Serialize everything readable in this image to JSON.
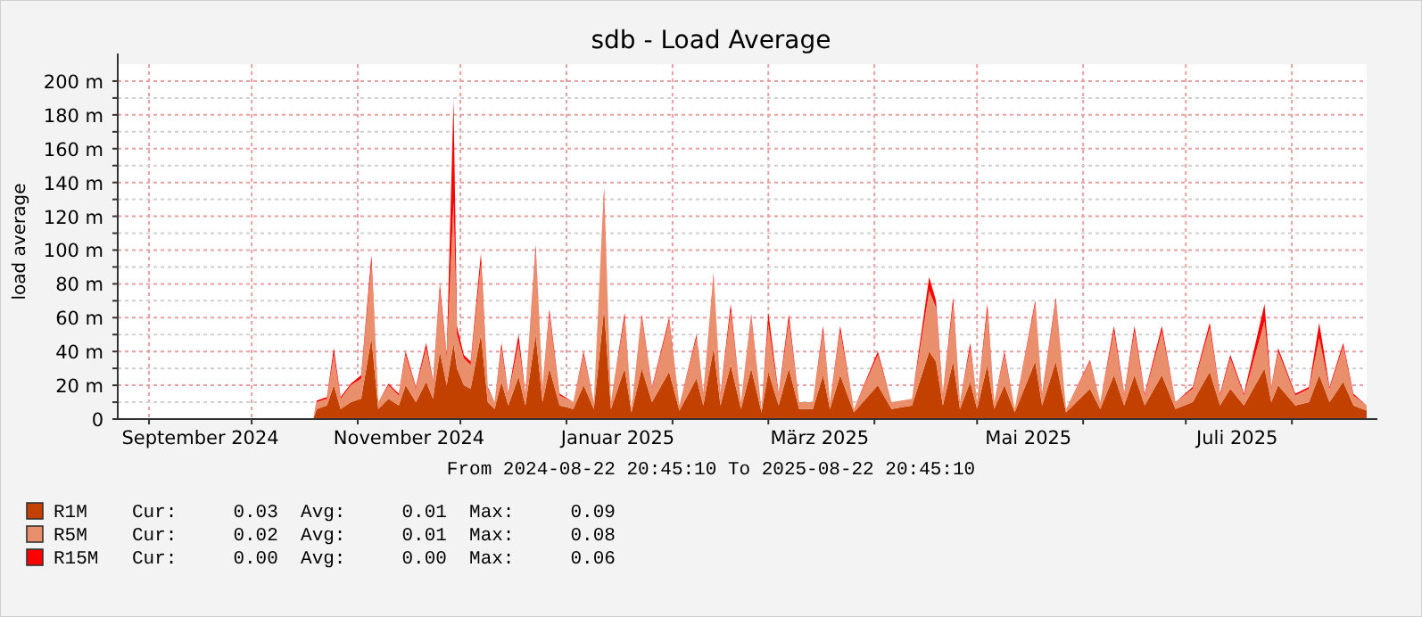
{
  "chart_data": {
    "type": "area",
    "title": "sdb - Load Average",
    "ylabel": "load average",
    "stacked": true,
    "grid": true,
    "legend": "bottom left",
    "xlim": [
      "2024-08-22T20:45",
      "2025-08-22T20:45"
    ],
    "xticks": [
      {
        "value": "2024-09-01",
        "label": null
      },
      {
        "value": "2024-09-16",
        "label": "September 2024"
      },
      {
        "value": "2024-10-01",
        "label": null
      },
      {
        "value": "2024-11-01",
        "label": null
      },
      {
        "value": "2024-11-16",
        "label": "November 2024"
      },
      {
        "value": "2024-12-01",
        "label": null
      },
      {
        "value": "2025-01-01",
        "label": null
      },
      {
        "value": "2025-01-16",
        "label": "Januar 2025"
      },
      {
        "value": "2025-02-01",
        "label": null
      },
      {
        "value": "2025-03-01",
        "label": null
      },
      {
        "value": "2025-03-16",
        "label": "März 2025"
      },
      {
        "value": "2025-04-01",
        "label": null
      },
      {
        "value": "2025-05-01",
        "label": null
      },
      {
        "value": "2025-05-16",
        "label": "Mai 2025"
      },
      {
        "value": "2025-06-01",
        "label": null
      },
      {
        "value": "2025-07-01",
        "label": null
      },
      {
        "value": "2025-07-16",
        "label": "Juli 2025"
      },
      {
        "value": "2025-08-01",
        "label": null
      }
    ],
    "ylim": [
      0,
      210
    ],
    "yticks": [
      0,
      {
        "value": 10,
        "label": null
      },
      {
        "value": 20,
        "label": "20 m"
      },
      {
        "value": 30,
        "label": null
      },
      {
        "value": 40,
        "label": "40 m"
      },
      {
        "value": 50,
        "label": null
      },
      {
        "value": 60,
        "label": "60 m"
      },
      {
        "value": 70,
        "label": null
      },
      {
        "value": 80,
        "label": "80 m"
      },
      {
        "value": 90,
        "label": null
      },
      {
        "value": 100,
        "label": "100 m"
      },
      {
        "value": 110,
        "label": null
      },
      {
        "value": 120,
        "label": "120 m"
      },
      {
        "value": 130,
        "label": null
      },
      {
        "value": 140,
        "label": "140 m"
      },
      {
        "value": 150,
        "label": null
      },
      {
        "value": 160,
        "label": "160 m"
      },
      {
        "value": 170,
        "label": null
      },
      {
        "value": 180,
        "label": "180 m"
      },
      {
        "value": 190,
        "label": null
      },
      {
        "value": 200,
        "label": "200 m"
      }
    ],
    "x": [
      "2024-10-19",
      "2024-10-20",
      "2024-10-23",
      "2024-10-25",
      "2024-10-27",
      "2024-10-30",
      "2024-11-02",
      "2024-11-05",
      "2024-11-07",
      "2024-11-10",
      "2024-11-13",
      "2024-11-15",
      "2024-11-18",
      "2024-11-21",
      "2024-11-23",
      "2024-11-25",
      "2024-11-27",
      "2024-11-29",
      "2024-11-30",
      "2024-12-02",
      "2024-12-04",
      "2024-12-07",
      "2024-12-09",
      "2024-12-11",
      "2024-12-13",
      "2024-12-15",
      "2024-12-18",
      "2024-12-20",
      "2024-12-23",
      "2024-12-25",
      "2024-12-27",
      "2024-12-30",
      "2025-01-03",
      "2025-01-06",
      "2025-01-09",
      "2025-01-12",
      "2025-01-14",
      "2025-01-18",
      "2025-01-20",
      "2025-01-23",
      "2025-01-26",
      "2025-01-31",
      "2025-02-03",
      "2025-02-08",
      "2025-02-10",
      "2025-02-13",
      "2025-02-15",
      "2025-02-18",
      "2025-02-21",
      "2025-02-24",
      "2025-02-27",
      "2025-03-01",
      "2025-03-04",
      "2025-03-07",
      "2025-03-10",
      "2025-03-14",
      "2025-03-17",
      "2025-03-19",
      "2025-03-22",
      "2025-03-26",
      "2025-04-02",
      "2025-04-06",
      "2025-04-12",
      "2025-04-17",
      "2025-04-19",
      "2025-04-21",
      "2025-04-24",
      "2025-04-26",
      "2025-04-29",
      "2025-05-01",
      "2025-05-04",
      "2025-05-06",
      "2025-05-09",
      "2025-05-12",
      "2025-05-18",
      "2025-05-20",
      "2025-05-24",
      "2025-05-27",
      "2025-06-03",
      "2025-06-06",
      "2025-06-10",
      "2025-06-13",
      "2025-06-16",
      "2025-06-19",
      "2025-06-24",
      "2025-06-28",
      "2025-07-03",
      "2025-07-08",
      "2025-07-11",
      "2025-07-14",
      "2025-07-18",
      "2025-07-24",
      "2025-07-26",
      "2025-07-28",
      "2025-08-02",
      "2025-08-06",
      "2025-08-09",
      "2025-08-12",
      "2025-08-16",
      "2025-08-19",
      "2025-08-22T20:45"
    ],
    "series": [
      {
        "name": "R1M",
        "color": "#c24100",
        "values": [
          0,
          6,
          8,
          20,
          6,
          10,
          12,
          48,
          6,
          12,
          8,
          20,
          10,
          22,
          12,
          40,
          20,
          45,
          30,
          20,
          18,
          50,
          10,
          6,
          22,
          8,
          25,
          8,
          50,
          10,
          30,
          8,
          6,
          20,
          6,
          65,
          6,
          30,
          4,
          30,
          10,
          28,
          5,
          24,
          8,
          42,
          8,
          32,
          6,
          30,
          4,
          28,
          8,
          30,
          6,
          6,
          26,
          6,
          26,
          4,
          20,
          6,
          8,
          40,
          34,
          8,
          34,
          6,
          22,
          6,
          32,
          6,
          20,
          4,
          34,
          8,
          34,
          4,
          18,
          6,
          26,
          8,
          26,
          8,
          26,
          6,
          10,
          28,
          8,
          18,
          8,
          30,
          10,
          20,
          8,
          10,
          26,
          10,
          22,
          8,
          5
        ]
      },
      {
        "name": "R5M",
        "color": "#ea8f6b",
        "values": [
          0,
          4,
          4,
          18,
          6,
          10,
          12,
          44,
          4,
          8,
          6,
          18,
          8,
          20,
          10,
          36,
          16,
          84,
          20,
          16,
          14,
          42,
          8,
          4,
          20,
          6,
          20,
          6,
          50,
          8,
          32,
          6,
          4,
          18,
          4,
          68,
          4,
          30,
          2,
          30,
          8,
          30,
          3,
          24,
          6,
          42,
          6,
          32,
          4,
          30,
          2,
          28,
          6,
          28,
          4,
          4,
          26,
          4,
          26,
          2,
          18,
          4,
          4,
          36,
          32,
          6,
          34,
          4,
          20,
          4,
          32,
          4,
          18,
          2,
          34,
          6,
          36,
          2,
          16,
          4,
          26,
          6,
          26,
          6,
          26,
          4,
          8,
          26,
          6,
          18,
          6,
          28,
          8,
          20,
          6,
          8,
          22,
          8,
          21,
          6,
          3
        ]
      },
      {
        "name": "R15M",
        "color": "#ff0000",
        "values": [
          0,
          1,
          1,
          4,
          1,
          1,
          2,
          5,
          0,
          1,
          1,
          2,
          1,
          3,
          1,
          4,
          2,
          60,
          5,
          2,
          2,
          6,
          1,
          0,
          3,
          1,
          5,
          1,
          3,
          1,
          3,
          1,
          0,
          2,
          0,
          4,
          0,
          3,
          0,
          2,
          1,
          2,
          0,
          2,
          1,
          2,
          1,
          4,
          0,
          2,
          0,
          7,
          1,
          4,
          0,
          0,
          3,
          0,
          3,
          0,
          2,
          0,
          0,
          8,
          4,
          1,
          4,
          0,
          3,
          0,
          4,
          0,
          2,
          0,
          2,
          1,
          2,
          0,
          1,
          0,
          3,
          1,
          3,
          1,
          3,
          0,
          1,
          3,
          1,
          2,
          1,
          10,
          1,
          2,
          1,
          1,
          9,
          1,
          2,
          1,
          0
        ]
      }
    ],
    "annotations": [
      "From 2024-08-22 20:45:10 To 2025-08-22 20:45:10",
      "Cur:     0.03  Avg:     0.01  Max:     0.09",
      "Cur:     0.02  Avg:     0.01  Max:     0.08",
      "Cur:     0.00  Avg:     0.00  Max:     0.06"
    ]
  }
}
